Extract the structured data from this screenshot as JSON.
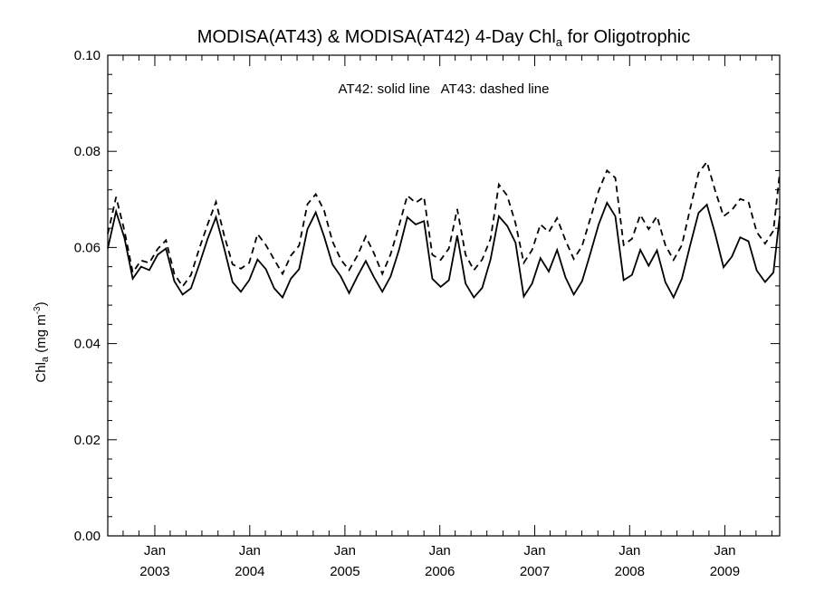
{
  "chart_data": {
    "type": "line",
    "title": {
      "main": "MODISA(AT43) & MODISA(AT42) 4-Day Chl",
      "subscript": "a",
      "suffix": " for Oligotrophic"
    },
    "annotation": "AT42: solid line   AT43: dashed line",
    "ylabel": {
      "main": "Chl",
      "subscript": "a",
      "unit_prefix": " (mg m",
      "superscript": "-3",
      "unit_suffix": ")"
    },
    "ylim": [
      0.0,
      0.1
    ],
    "y_ticks": [
      "0.00",
      "0.02",
      "0.04",
      "0.06",
      "0.08",
      "0.10"
    ],
    "y_tick_values": [
      0.0,
      0.02,
      0.04,
      0.06,
      0.08,
      0.1
    ],
    "xlim": [
      "2002-07-04",
      "2009-07-31"
    ],
    "x_ticks": [
      {
        "date": "2003-01-01",
        "month": "Jan",
        "year": "2003"
      },
      {
        "date": "2004-01-01",
        "month": "Jan",
        "year": "2004"
      },
      {
        "date": "2005-01-01",
        "month": "Jan",
        "year": "2005"
      },
      {
        "date": "2006-01-01",
        "month": "Jan",
        "year": "2006"
      },
      {
        "date": "2007-01-01",
        "month": "Jan",
        "year": "2007"
      },
      {
        "date": "2008-01-01",
        "month": "Jan",
        "year": "2008"
      },
      {
        "date": "2009-01-01",
        "month": "Jan",
        "year": "2009"
      }
    ],
    "x": [
      "2002-07-04",
      "2002-08-05",
      "2002-09-06",
      "2002-10-08",
      "2002-11-09",
      "2002-12-11",
      "2003-01-12",
      "2003-02-13",
      "2003-03-17",
      "2003-04-18",
      "2003-05-20",
      "2003-06-21",
      "2003-07-23",
      "2003-08-24",
      "2003-09-25",
      "2003-10-27",
      "2003-11-28",
      "2003-12-30",
      "2004-01-31",
      "2004-03-03",
      "2004-04-04",
      "2004-05-06",
      "2004-06-07",
      "2004-07-09",
      "2004-08-10",
      "2004-09-11",
      "2004-10-13",
      "2004-11-14",
      "2004-12-16",
      "2005-01-17",
      "2005-02-18",
      "2005-03-22",
      "2005-04-23",
      "2005-05-25",
      "2005-06-26",
      "2005-07-28",
      "2005-08-29",
      "2005-09-30",
      "2005-11-01",
      "2005-12-03",
      "2006-01-04",
      "2006-02-05",
      "2006-03-09",
      "2006-04-10",
      "2006-05-12",
      "2006-06-13",
      "2006-07-15",
      "2006-08-16",
      "2006-09-17",
      "2006-10-19",
      "2006-11-20",
      "2006-12-22",
      "2007-01-23",
      "2007-02-24",
      "2007-03-28",
      "2007-04-29",
      "2007-05-31",
      "2007-07-02",
      "2007-08-03",
      "2007-09-04",
      "2007-10-06",
      "2007-11-07",
      "2007-12-09",
      "2008-01-10",
      "2008-02-11",
      "2008-03-14",
      "2008-04-15",
      "2008-05-17",
      "2008-06-18",
      "2008-07-20",
      "2008-08-21",
      "2008-09-22",
      "2008-10-24",
      "2008-11-25",
      "2008-12-27",
      "2009-01-28",
      "2009-03-01",
      "2009-04-02",
      "2009-05-04",
      "2009-06-05",
      "2009-07-07",
      "2009-07-31"
    ],
    "series": [
      {
        "name": "AT42",
        "style": "solid",
        "color": "#000000",
        "values": [
          0.0598,
          0.0675,
          0.062,
          0.0535,
          0.056,
          0.0553,
          0.0585,
          0.0598,
          0.053,
          0.0502,
          0.0515,
          0.0565,
          0.0618,
          0.0663,
          0.0598,
          0.0528,
          0.0508,
          0.0532,
          0.0575,
          0.0555,
          0.0515,
          0.0496,
          0.0535,
          0.0555,
          0.0638,
          0.0673,
          0.0623,
          0.0565,
          0.054,
          0.0505,
          0.054,
          0.0572,
          0.0538,
          0.0508,
          0.054,
          0.0595,
          0.0663,
          0.0648,
          0.0655,
          0.0535,
          0.0518,
          0.0532,
          0.0625,
          0.0525,
          0.0496,
          0.0516,
          0.0575,
          0.0665,
          0.0645,
          0.061,
          0.0498,
          0.0525,
          0.0578,
          0.055,
          0.0595,
          0.0538,
          0.0502,
          0.053,
          0.0588,
          0.0648,
          0.0693,
          0.0665,
          0.0532,
          0.0543,
          0.0595,
          0.0562,
          0.0594,
          0.0528,
          0.0496,
          0.0535,
          0.0605,
          0.0672,
          0.0689,
          0.0628,
          0.0559,
          0.0581,
          0.0621,
          0.0613,
          0.0552,
          0.0528,
          0.0548,
          0.0665
        ]
      },
      {
        "name": "AT43",
        "style": "dashed",
        "color": "#000000",
        "values": [
          0.0628,
          0.0705,
          0.0635,
          0.0548,
          0.0573,
          0.0568,
          0.0597,
          0.0615,
          0.0545,
          0.0519,
          0.0543,
          0.0598,
          0.0648,
          0.0695,
          0.0625,
          0.0565,
          0.0556,
          0.0568,
          0.0628,
          0.0605,
          0.0575,
          0.0545,
          0.0583,
          0.0604,
          0.069,
          0.0711,
          0.0677,
          0.0613,
          0.0575,
          0.0553,
          0.0583,
          0.0623,
          0.0588,
          0.0545,
          0.0586,
          0.0645,
          0.0708,
          0.0693,
          0.0705,
          0.0585,
          0.0574,
          0.0598,
          0.068,
          0.0585,
          0.0553,
          0.0575,
          0.0618,
          0.0731,
          0.0708,
          0.065,
          0.0568,
          0.0595,
          0.0648,
          0.0632,
          0.0661,
          0.0615,
          0.0576,
          0.0603,
          0.0661,
          0.0718,
          0.076,
          0.0745,
          0.0605,
          0.0618,
          0.0668,
          0.0638,
          0.0665,
          0.0605,
          0.0574,
          0.0605,
          0.0681,
          0.0755,
          0.0778,
          0.0718,
          0.0665,
          0.0678,
          0.0701,
          0.0695,
          0.0632,
          0.0608,
          0.0635,
          0.0754
        ]
      }
    ]
  }
}
